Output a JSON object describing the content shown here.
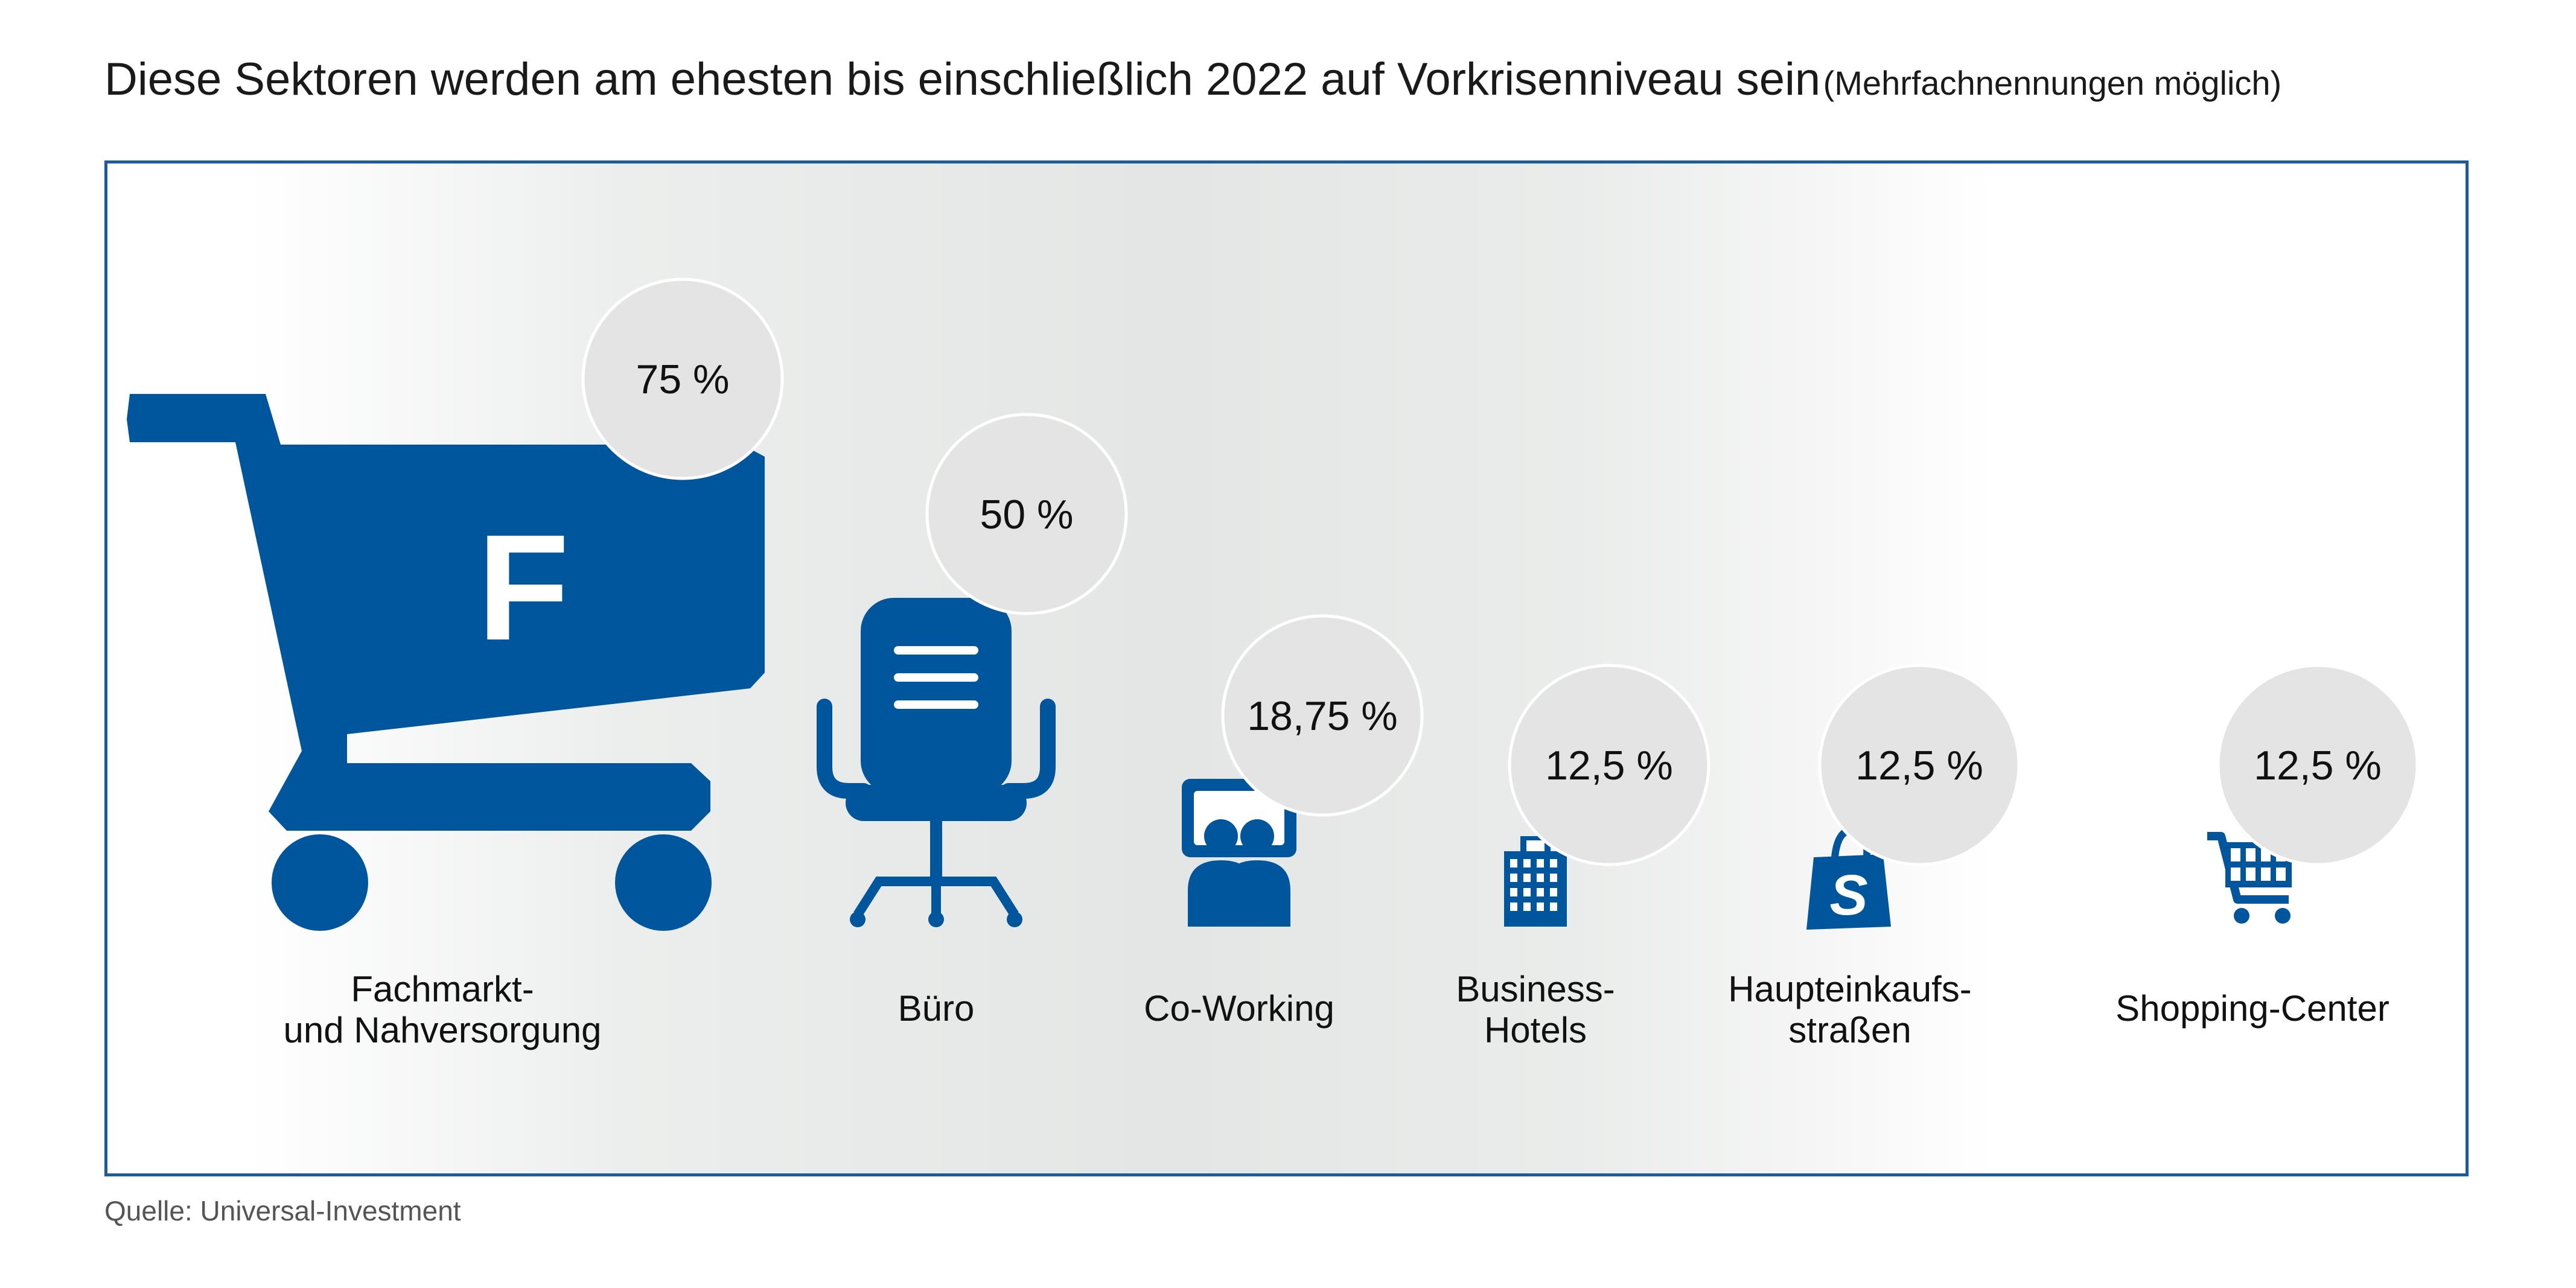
{
  "title": {
    "main": "Diese Sektoren werden am ehesten bis einschließlich 2022 auf Vorkrisenniveau sein",
    "sub": "(Mehrfachnennungen möglich)"
  },
  "source": "Quelle: Universal-Investment",
  "colors": {
    "accent": "#00569c",
    "bubble": "#e3e4e3",
    "frame": "#1e5b9a"
  },
  "chart_data": {
    "type": "bar",
    "title": "Diese Sektoren werden am ehesten bis einschließlich 2022 auf Vorkrisenniveau sein",
    "unit": "%",
    "categories": [
      "Fachmarkt- und Nahversorgung",
      "Büro",
      "Co-Working",
      "Business-Hotels",
      "Haupteinkaufsstraßen",
      "Shopping-Center"
    ],
    "values": [
      75,
      50,
      18.75,
      12.5,
      12.5,
      12.5
    ],
    "value_labels": [
      "75 %",
      "50 %",
      "18,75 %",
      "12,5 %",
      "12,5 %",
      "12,5 %"
    ],
    "label_lines": [
      [
        "Fachmarkt-",
        "und Nahversorgung"
      ],
      [
        "Büro"
      ],
      [
        "Co-Working"
      ],
      [
        "Business-",
        "Hotels"
      ],
      [
        "Haupteinkaufs-",
        "straßen"
      ],
      [
        "Shopping-Center"
      ]
    ],
    "icons": [
      "shopping-cart-f-icon",
      "office-chair-icon",
      "coworking-icon",
      "hotel-building-icon",
      "shopping-bag-icon",
      "shopping-cart-icon"
    ],
    "cart_letter": "F",
    "icon_size_encodes_value": true
  }
}
